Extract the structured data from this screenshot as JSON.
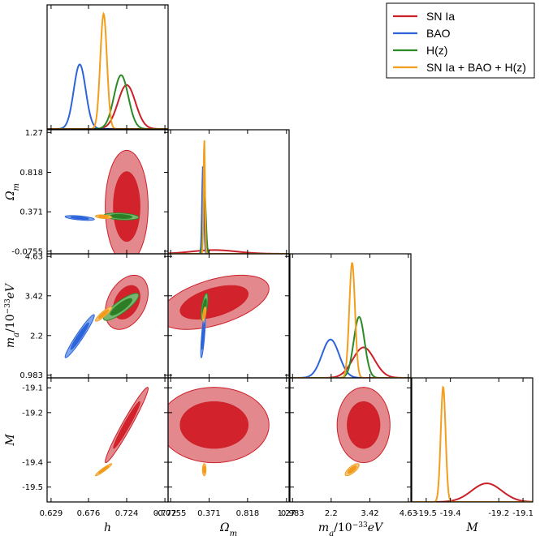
{
  "chart_data": {
    "type": "triangle",
    "parameters": [
      {
        "key": "h",
        "label": "h",
        "range": [
          0.624,
          0.776
        ],
        "ticks": [
          "0.629",
          "0.676",
          "0.724",
          "0.772"
        ],
        "tick_values": [
          0.629,
          0.676,
          0.724,
          0.772
        ]
      },
      {
        "key": "om",
        "label": "Ω",
        "sub": "m",
        "range": [
          -0.105,
          1.3
        ],
        "ticks": [
          "-0.0755",
          "0.371",
          "0.818",
          "1.27"
        ],
        "tick_values": [
          -0.0755,
          0.371,
          0.818,
          1.27
        ]
      },
      {
        "key": "ma",
        "label": "m",
        "sub": "a",
        "after": "/10",
        "sup": "−33",
        "unit": "eV",
        "range": [
          0.9,
          4.71
        ],
        "ticks": [
          "0.983",
          "2.2",
          "3.42",
          "4.63"
        ],
        "tick_values": [
          0.983,
          2.2,
          3.42,
          4.63
        ]
      },
      {
        "key": "M",
        "label": "M",
        "range": [
          -19.56,
          -19.06
        ],
        "ticks": [
          "-19.5",
          "-19.4",
          "-19.2",
          "-19.1"
        ],
        "tick_values": [
          -19.5,
          -19.4,
          -19.2,
          -19.1
        ]
      }
    ],
    "series": [
      {
        "name": "SN Ia",
        "color": "#cc2029",
        "fill68": "#d2232d",
        "fill95": "#e3898d",
        "mean": {
          "h": 0.724,
          "om": 0.43,
          "ma": 3.22,
          "M": -19.25
        },
        "sigma": {
          "h": 0.011,
          "om": 0.26,
          "ma": 0.34,
          "M": 0.062
        },
        "corr": {
          "h|om": 0.0,
          "h|ma": 0.35,
          "h|M": 0.97,
          "om|ma": 0.5,
          "om|M": 0.0,
          "ma|M": 0.0
        }
      },
      {
        "name": "BAO",
        "color": "#2e64d9",
        "fill68": "#2e64d9",
        "fill95": "#7ea6ee",
        "mean": {
          "h": 0.665,
          "om": 0.301,
          "ma": 2.18,
          "M": null
        },
        "sigma": {
          "h": 0.0075,
          "om": 0.011,
          "ma": 0.27,
          "M": null
        },
        "corr": {
          "h|om": -0.55,
          "h|ma": 0.96,
          "om|ma": 0.75
        }
      },
      {
        "name": "H(z)",
        "color": "#2c8a26",
        "fill68": "#2c7d26",
        "fill95": "#77b672",
        "mean": {
          "h": 0.717,
          "om": 0.318,
          "ma": 3.08,
          "M": null
        },
        "sigma": {
          "h": 0.009,
          "om": 0.016,
          "ma": 0.17,
          "M": null
        },
        "corr": {
          "h|om": -0.25,
          "h|ma": 0.85,
          "om|ma": 0.6
        }
      },
      {
        "name": "SN Ia + BAO + H(z)",
        "color": "#f29e1f",
        "fill68": "#f09a1b",
        "fill95": "#f7c57a",
        "mean": {
          "h": 0.695,
          "om": 0.315,
          "ma": 2.86,
          "M": -19.43
        },
        "sigma": {
          "h": 0.0042,
          "om": 0.0085,
          "ma": 0.09,
          "M": 0.01
        },
        "corr": {
          "h|om": -0.3,
          "h|ma": 0.9,
          "h|M": 0.95,
          "om|ma": 0.6,
          "om|M": 0.0,
          "ma|M": 0.75
        }
      }
    ]
  }
}
